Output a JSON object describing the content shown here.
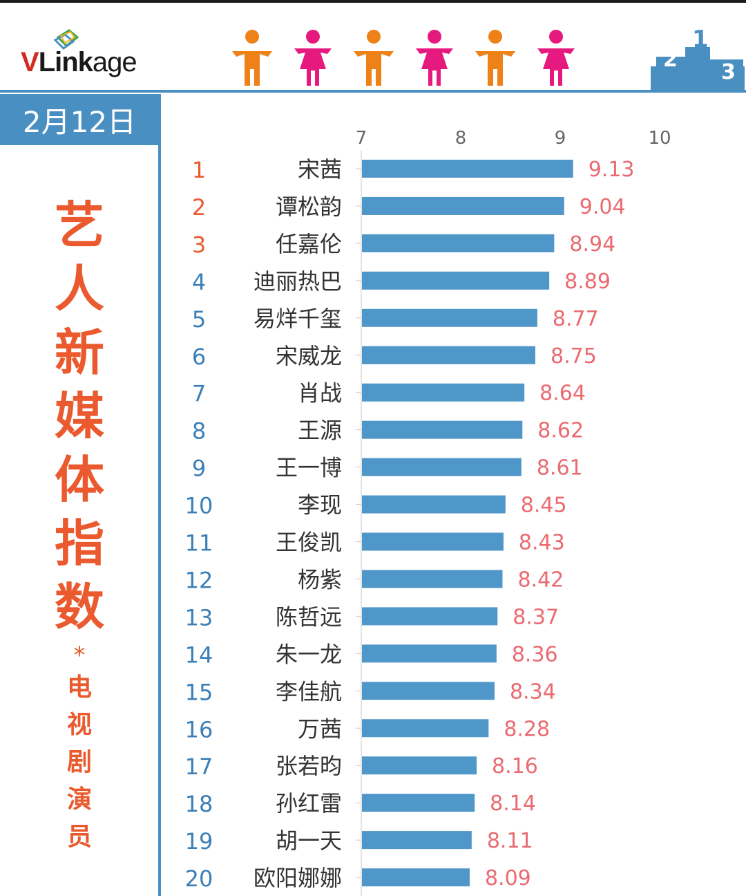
{
  "header": {
    "logo_text_v": "V",
    "logo_text_link": "Link",
    "logo_text_age": "age",
    "date": "2月12日",
    "podium_numbers": [
      "2",
      "1",
      "3"
    ]
  },
  "title": {
    "main": "艺人新媒体指数",
    "star": "*",
    "sub": "电视剧演员"
  },
  "colors": {
    "accent_blue": "#4a8fc2",
    "bar": "#4f96c9",
    "value_label": "#ea6a70",
    "rank_top3": "#ea5a2e",
    "rank_other": "#3b7fb6",
    "title_orange": "#ea5a2e",
    "male_figure": "#ef8119",
    "female_figure": "#e6197f"
  },
  "figures": [
    "male-icon",
    "female-icon",
    "male-icon",
    "female-icon",
    "male-icon",
    "female-icon"
  ],
  "chart_data": {
    "type": "bar",
    "orientation": "horizontal",
    "xlim": [
      7,
      10
    ],
    "xticks": [
      "7",
      "8",
      "9",
      "10"
    ],
    "ranks": [
      "1",
      "2",
      "3",
      "4",
      "5",
      "6",
      "7",
      "8",
      "9",
      "10",
      "11",
      "12",
      "13",
      "14",
      "15",
      "16",
      "17",
      "18",
      "19",
      "20"
    ],
    "categories": [
      "宋茜",
      "谭松韵",
      "任嘉伦",
      "迪丽热巴",
      "易烊千玺",
      "宋威龙",
      "肖战",
      "王源",
      "王一博",
      "李现",
      "王俊凯",
      "杨紫",
      "陈哲远",
      "朱一龙",
      "李佳航",
      "万茜",
      "张若昀",
      "孙红雷",
      "胡一天",
      "欧阳娜娜"
    ],
    "values": [
      9.13,
      9.04,
      8.94,
      8.89,
      8.77,
      8.75,
      8.64,
      8.62,
      8.61,
      8.45,
      8.43,
      8.42,
      8.37,
      8.36,
      8.34,
      8.28,
      8.16,
      8.14,
      8.11,
      8.09
    ],
    "value_labels": [
      "9.13",
      "9.04",
      "8.94",
      "8.89",
      "8.77",
      "8.75",
      "8.64",
      "8.62",
      "8.61",
      "8.45",
      "8.43",
      "8.42",
      "8.37",
      "8.36",
      "8.34",
      "8.28",
      "8.16",
      "8.14",
      "8.11",
      "8.09"
    ],
    "grid": false,
    "legend": "none"
  }
}
